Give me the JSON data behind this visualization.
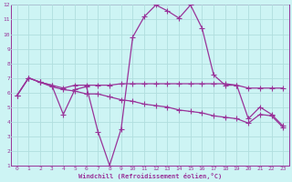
{
  "xlabel": "Windchill (Refroidissement éolien,°C)",
  "background_color": "#cdf4f4",
  "grid_color": "#b0dede",
  "line_color": "#993399",
  "xlim": [
    -0.5,
    23.5
  ],
  "ylim": [
    1,
    12
  ],
  "xticks": [
    0,
    1,
    2,
    3,
    4,
    5,
    6,
    7,
    8,
    9,
    10,
    11,
    12,
    13,
    14,
    15,
    16,
    17,
    18,
    19,
    20,
    21,
    22,
    23
  ],
  "yticks": [
    1,
    2,
    3,
    4,
    5,
    6,
    7,
    8,
    9,
    10,
    11,
    12
  ],
  "line1_x": [
    0,
    1,
    2,
    3,
    4,
    5,
    6,
    7,
    8,
    9,
    10,
    11,
    12,
    13,
    14,
    15,
    16,
    17,
    18,
    19,
    20,
    21,
    22,
    23
  ],
  "line1_y": [
    5.8,
    7.0,
    6.7,
    6.5,
    6.3,
    6.5,
    6.5,
    6.5,
    6.5,
    6.6,
    6.6,
    6.6,
    6.6,
    6.6,
    6.6,
    6.6,
    6.6,
    6.6,
    6.6,
    6.5,
    6.3,
    6.3,
    6.3,
    6.3
  ],
  "line2_x": [
    0,
    1,
    2,
    3,
    4,
    5,
    6,
    7,
    8,
    9,
    10,
    11,
    12,
    13,
    14,
    15,
    16,
    17,
    18,
    19,
    20,
    21,
    22,
    23
  ],
  "line2_y": [
    5.8,
    7.0,
    6.7,
    6.5,
    4.5,
    6.2,
    6.4,
    3.3,
    1.0,
    3.5,
    9.8,
    11.2,
    12.0,
    11.6,
    11.1,
    12.0,
    10.4,
    7.2,
    6.5,
    6.5,
    4.2,
    5.0,
    4.5,
    3.7
  ],
  "line3_x": [
    0,
    1,
    2,
    3,
    4,
    5,
    6,
    7,
    8,
    9,
    10,
    11,
    12,
    13,
    14,
    15,
    16,
    17,
    18,
    19,
    20,
    21,
    22,
    23
  ],
  "line3_y": [
    5.8,
    7.0,
    6.7,
    6.4,
    6.2,
    6.1,
    5.9,
    5.9,
    5.7,
    5.5,
    5.4,
    5.2,
    5.1,
    5.0,
    4.8,
    4.7,
    4.6,
    4.4,
    4.3,
    4.2,
    3.9,
    4.5,
    4.4,
    3.6
  ]
}
